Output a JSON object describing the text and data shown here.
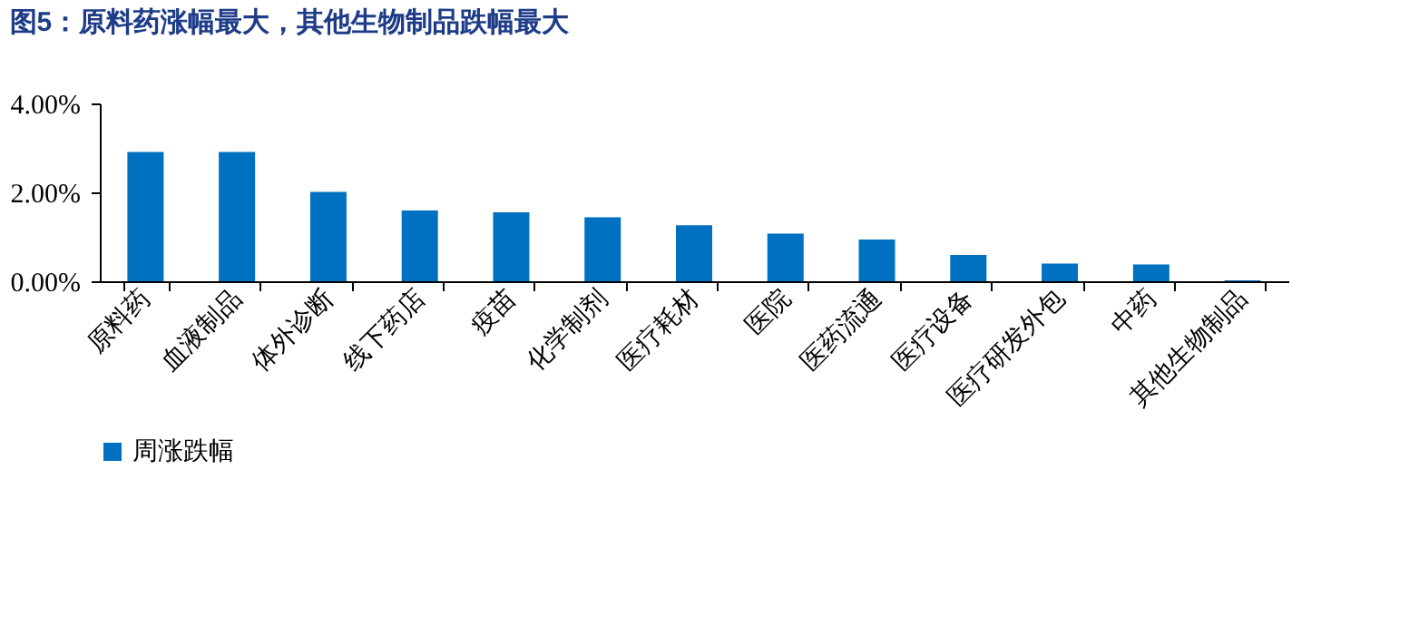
{
  "chart_data": {
    "type": "bar",
    "title": "图5：原料药涨幅最大，其他生物制品跌幅最大",
    "categories": [
      "原料药",
      "血液制品",
      "体外诊断",
      "线下药店",
      "疫苗",
      "化学制剂",
      "医疗耗材",
      "医院",
      "医药流通",
      "医疗设备",
      "医疗研发外包",
      "中药",
      "其他生物制品"
    ],
    "series": [
      {
        "name": "周涨跌幅",
        "color": "#0070c0",
        "values": [
          2.91,
          2.91,
          2.01,
          1.59,
          1.55,
          1.44,
          1.26,
          1.07,
          0.94,
          0.59,
          0.4,
          0.38,
          0.02
        ]
      }
    ],
    "ylim": [
      0,
      4
    ],
    "yticks": [
      {
        "value": 0,
        "label": "0.00%"
      },
      {
        "value": 2,
        "label": "2.00%"
      },
      {
        "value": 4,
        "label": "4.00%"
      }
    ],
    "grid": false,
    "legend": "bottom"
  }
}
